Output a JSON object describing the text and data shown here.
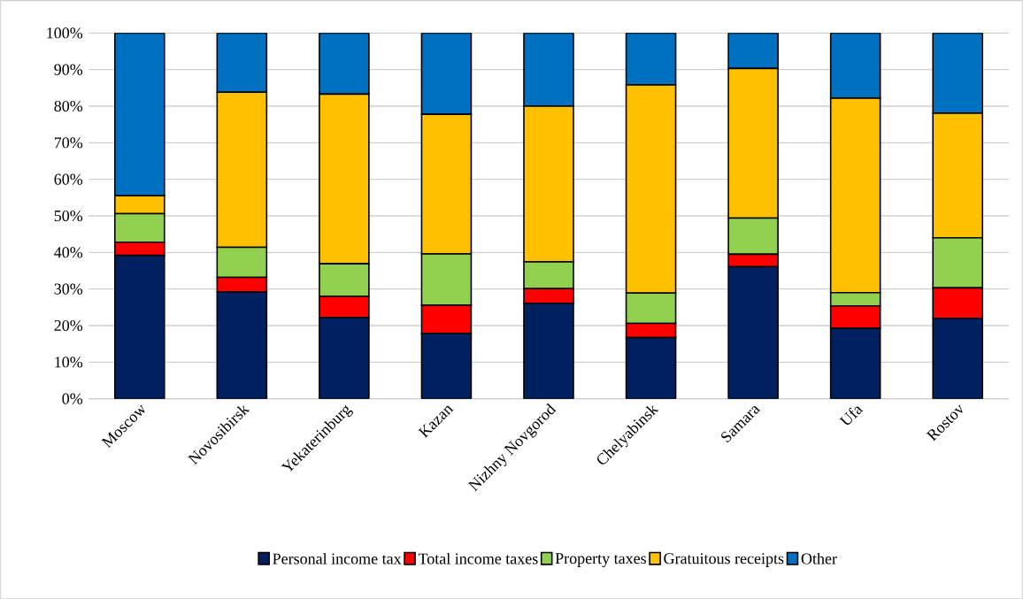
{
  "chart_data": {
    "type": "bar",
    "stacked": true,
    "categories": [
      "Moscow",
      "Novosibirsk",
      "Yekaterinburg",
      "Kazan",
      "Nizhny Novgorod",
      "Chelyabinsk",
      "Samara",
      "Ufa",
      "Rostov"
    ],
    "series": [
      {
        "name": "Personal income tax",
        "color": "#002060",
        "values": [
          39.2,
          29.2,
          22.2,
          17.9,
          26.1,
          16.7,
          36.1,
          19.3,
          22.0
        ]
      },
      {
        "name": "Total income taxes",
        "color": "#ff0000",
        "values": [
          3.6,
          4.0,
          5.8,
          7.7,
          4.0,
          3.9,
          3.4,
          6.1,
          8.3
        ]
      },
      {
        "name": "Property taxes",
        "color": "#92d050",
        "values": [
          7.8,
          8.2,
          8.9,
          14.0,
          7.3,
          8.3,
          9.9,
          3.6,
          13.7
        ]
      },
      {
        "name": "Gratuitous receipts",
        "color": "#ffc000",
        "values": [
          4.9,
          42.4,
          46.4,
          38.2,
          42.6,
          56.9,
          40.9,
          53.2,
          34.1
        ]
      },
      {
        "name": "Other",
        "color": "#0070c0",
        "values": [
          44.5,
          16.2,
          16.7,
          22.2,
          20.0,
          14.2,
          9.7,
          17.8,
          21.9
        ]
      }
    ],
    "ylim": [
      0,
      100
    ],
    "yticks": [
      {
        "value": 0,
        "label": "0%"
      },
      {
        "value": 10,
        "label": "10%"
      },
      {
        "value": 20,
        "label": "20%"
      },
      {
        "value": 30,
        "label": "30%"
      },
      {
        "value": 40,
        "label": "40%"
      },
      {
        "value": 50,
        "label": "50%"
      },
      {
        "value": 60,
        "label": "60%"
      },
      {
        "value": 70,
        "label": "70%"
      },
      {
        "value": 80,
        "label": "80%"
      },
      {
        "value": 90,
        "label": "90%"
      },
      {
        "value": 100,
        "label": "100%"
      }
    ],
    "grid": "y",
    "legend": "bottom"
  }
}
